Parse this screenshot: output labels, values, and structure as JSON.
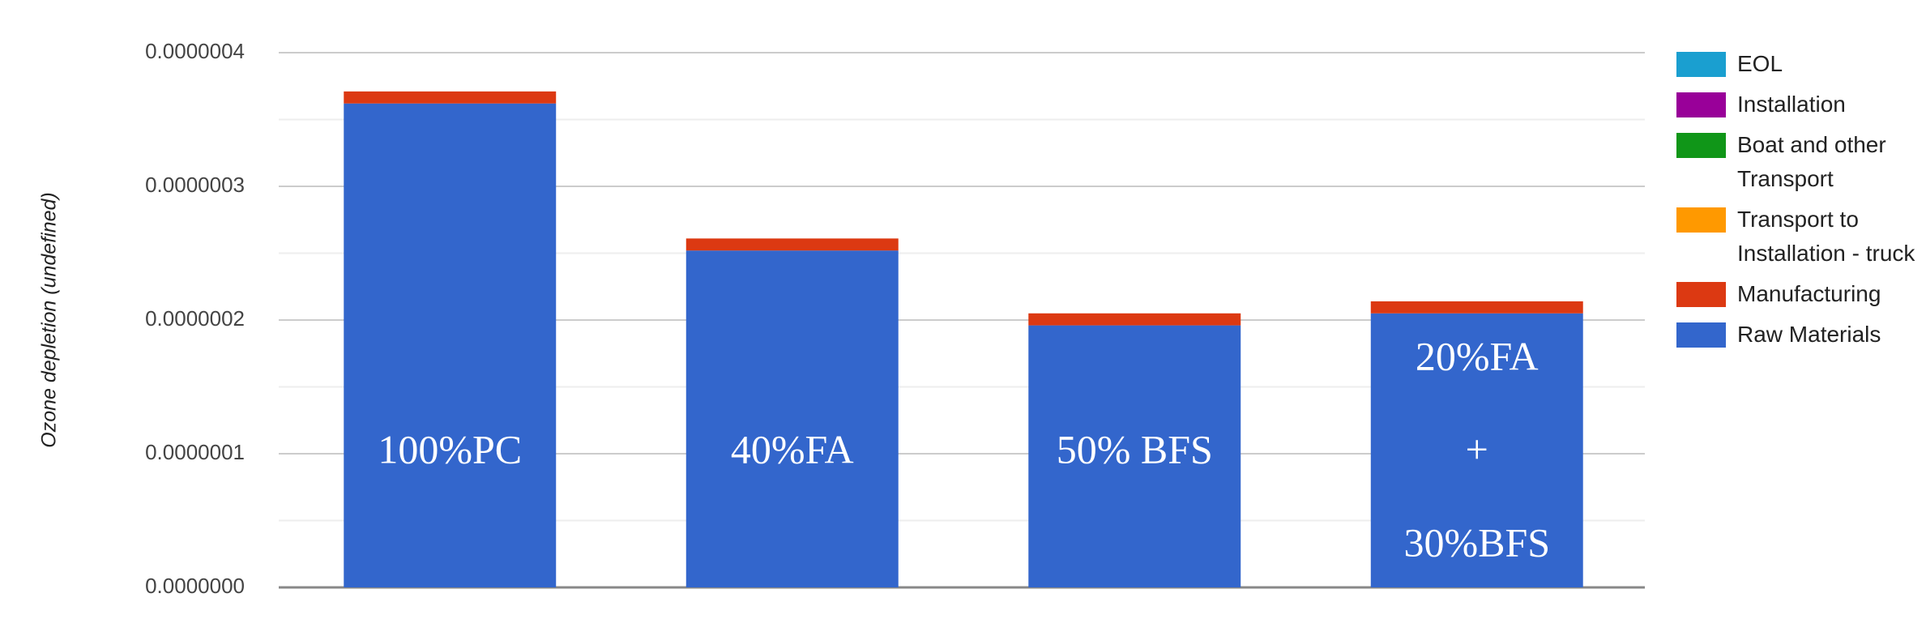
{
  "chart_data": {
    "type": "stacked_bar",
    "y_label": "Ozone depletion (undefined)",
    "categories": [
      [
        "100%PC"
      ],
      [
        "40%FA"
      ],
      [
        "50% BFS"
      ],
      [
        "20%FA",
        "+",
        "30%BFS"
      ]
    ],
    "series": [
      {
        "name": "EOL",
        "color": "#1a9fd0",
        "values": [
          0,
          0,
          0,
          0
        ]
      },
      {
        "name": "Installation",
        "color": "#990099",
        "values": [
          0,
          0,
          0,
          0
        ]
      },
      {
        "name": "Boat and other Transport",
        "color": "#109618",
        "values": [
          0,
          0,
          0,
          0
        ]
      },
      {
        "name": "Transport to Installation - truck",
        "color": "#ff9900",
        "values": [
          0,
          0,
          0,
          0
        ]
      },
      {
        "name": "Manufacturing",
        "color": "#dc3912",
        "values": [
          9e-09,
          9e-09,
          9e-09,
          9e-09
        ]
      },
      {
        "name": "Raw Materials",
        "color": "#3366cc",
        "values": [
          3.62e-07,
          2.52e-07,
          1.96e-07,
          2.05e-07
        ]
      }
    ],
    "ylim": [
      0,
      4e-07
    ],
    "yticks": [
      {
        "value": 0,
        "label": "0.0000000"
      },
      {
        "value": 1e-07,
        "label": "0.0000001"
      },
      {
        "value": 2e-07,
        "label": "0.0000002"
      },
      {
        "value": 3e-07,
        "label": "0.0000003"
      },
      {
        "value": 4e-07,
        "label": "0.0000004"
      }
    ],
    "grid": true,
    "minor_grid": true,
    "legend": "right"
  }
}
